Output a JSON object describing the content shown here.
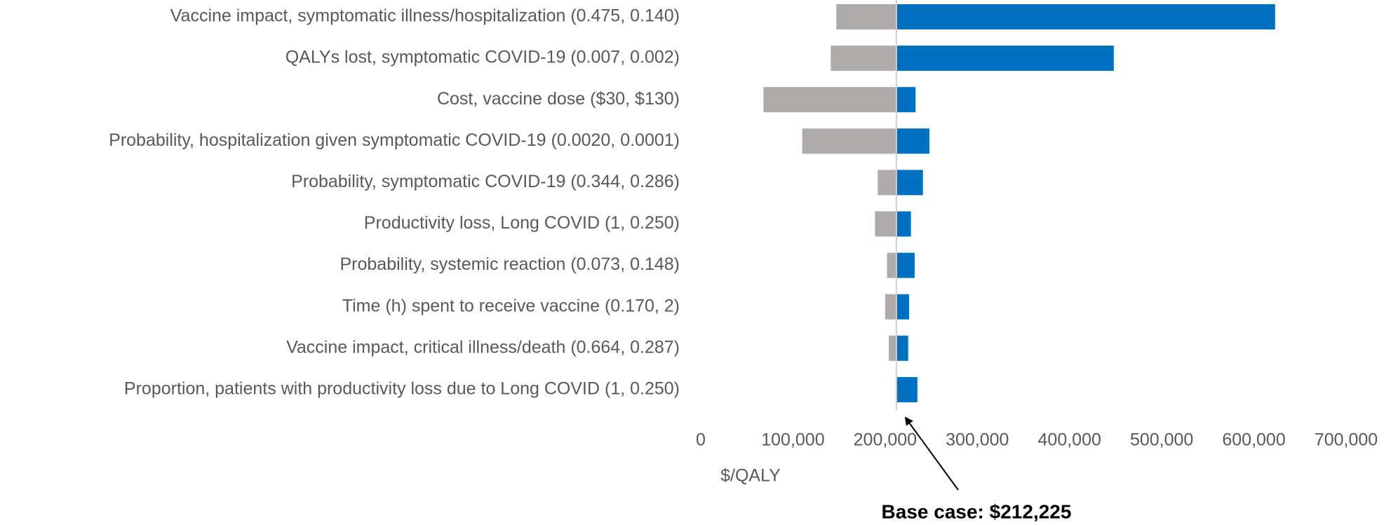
{
  "chart_data": {
    "type": "tornado",
    "categories": [
      "Vaccine impact, symptomatic illness/hospitalization (0.475, 0.140)",
      "QALYs lost, symptomatic COVID-19 (0.007, 0.002)",
      "Cost, vaccine dose ($30, $130)",
      "Probability, hospitalization given symptomatic COVID-19 (0.0020, 0.0001)",
      "Probability, symptomatic COVID-19 (0.344, 0.286)",
      "Productivity loss, Long COVID (1, 0.250)",
      "Probability, systemic reaction (0.073, 0.148)",
      "Time (h) spent to receive vaccine (0.170, 2)",
      "Vaccine impact, critical illness/death (0.664, 0.287)",
      "Proportion, patients with productivity loss due to Long COVID (1, 0.250)"
    ],
    "series": [
      {
        "color": "#afabab",
        "values": [
          147000,
          141000,
          68000,
          110000,
          192000,
          189000,
          202000,
          200000,
          204000,
          212225
        ]
      },
      {
        "color": "#0070c0",
        "values": [
          623000,
          448000,
          233000,
          248000,
          241000,
          228000,
          232000,
          226000,
          225000,
          235000
        ]
      }
    ],
    "xlabel": "$/QALY",
    "xlim": [
      0,
      700000
    ],
    "xticks": [
      0,
      {
        "value": 100000,
        "label": "100,000"
      },
      {
        "value": 200000,
        "label": "200,000"
      },
      {
        "value": 300000,
        "label": "300,000"
      },
      {
        "value": 400000,
        "label": "400,000"
      },
      {
        "value": 500000,
        "label": "500,000"
      },
      {
        "value": 600000,
        "label": "600,000"
      },
      {
        "value": 700000,
        "label": "700,000"
      }
    ],
    "annotation": {
      "value": 212225,
      "label": "Base case: $212,225"
    }
  }
}
